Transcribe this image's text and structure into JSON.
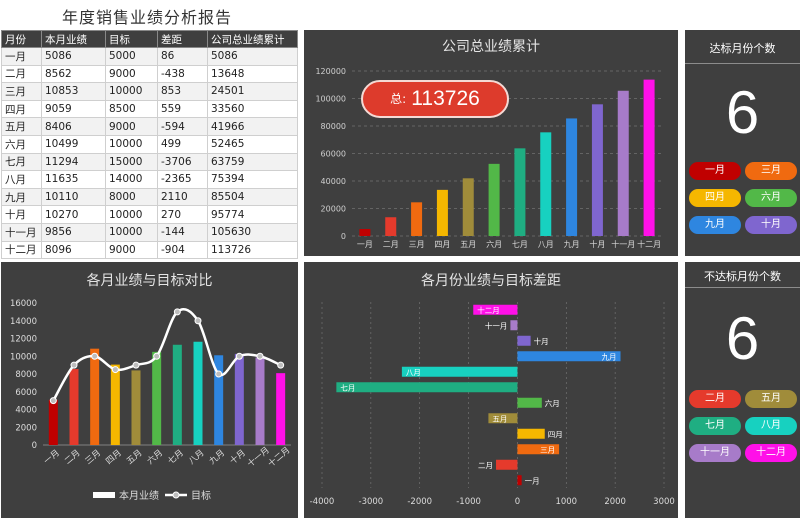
{
  "report_title": "年度销售业绩分析报告",
  "table": {
    "headers": [
      "月份",
      "本月业绩",
      "目标",
      "差距",
      "公司总业绩累计"
    ],
    "rows": [
      [
        "一月",
        "5086",
        "5000",
        "86",
        "5086"
      ],
      [
        "二月",
        "8562",
        "9000",
        "-438",
        "13648"
      ],
      [
        "三月",
        "10853",
        "10000",
        "853",
        "24501"
      ],
      [
        "四月",
        "9059",
        "8500",
        "559",
        "33560"
      ],
      [
        "五月",
        "8406",
        "9000",
        "-594",
        "41966"
      ],
      [
        "六月",
        "10499",
        "10000",
        "499",
        "52465"
      ],
      [
        "七月",
        "11294",
        "15000",
        "-3706",
        "63759"
      ],
      [
        "八月",
        "11635",
        "14000",
        "-2365",
        "75394"
      ],
      [
        "九月",
        "10110",
        "8000",
        "2110",
        "85504"
      ],
      [
        "十月",
        "10270",
        "10000",
        "270",
        "95774"
      ],
      [
        "十一月",
        "9856",
        "10000",
        "-144",
        "105630"
      ],
      [
        "十二月",
        "8096",
        "9000",
        "-904",
        "113726"
      ]
    ]
  },
  "colors": [
    "#c00000",
    "#e53a2c",
    "#f06a10",
    "#f5b700",
    "#a08c3a",
    "#52b848",
    "#1fae82",
    "#17d1c0",
    "#2e86e0",
    "#7f66cf",
    "#a77bc9",
    "#ff10e8"
  ],
  "total_badge": {
    "prefix": "总:",
    "value": "113726"
  },
  "chart_data": [
    {
      "type": "bar",
      "title": "公司总业绩累计",
      "categories": [
        "一月",
        "二月",
        "三月",
        "四月",
        "五月",
        "六月",
        "七月",
        "八月",
        "九月",
        "十月",
        "十一月",
        "十二月"
      ],
      "values": [
        5086,
        13648,
        24501,
        33560,
        41966,
        52465,
        63759,
        75394,
        85504,
        95774,
        105630,
        113726
      ],
      "ylim": [
        0,
        120000
      ],
      "yticks": [
        "0",
        "20000",
        "40000",
        "60000",
        "80000",
        "100000",
        "120000"
      ],
      "grid": true
    },
    {
      "type": "bar",
      "title": "各月业绩与目标对比",
      "categories": [
        "一月",
        "二月",
        "三月",
        "四月",
        "五月",
        "六月",
        "七月",
        "八月",
        "九月",
        "十月",
        "十一月",
        "十二月"
      ],
      "series": [
        {
          "name": "本月业绩",
          "type": "bar",
          "values": [
            5086,
            8562,
            10853,
            9059,
            8406,
            10499,
            11294,
            11635,
            10110,
            10270,
            9856,
            8096
          ]
        },
        {
          "name": "目标",
          "type": "line",
          "values": [
            5000,
            9000,
            10000,
            8500,
            9000,
            10000,
            15000,
            14000,
            8000,
            10000,
            10000,
            9000
          ]
        }
      ],
      "ylim": [
        0,
        16000
      ],
      "yticks": [
        "0",
        "2000",
        "4000",
        "6000",
        "8000",
        "10000",
        "12000",
        "14000",
        "16000"
      ],
      "legend": "bottom"
    },
    {
      "type": "bar",
      "orientation": "horizontal",
      "title": "各月份业绩与目标差距",
      "categories": [
        "一月",
        "二月",
        "三月",
        "四月",
        "五月",
        "六月",
        "七月",
        "八月",
        "九月",
        "十月",
        "十一月",
        "十二月"
      ],
      "values": [
        86,
        -438,
        853,
        559,
        -594,
        499,
        -3706,
        -2365,
        2110,
        270,
        -144,
        -904
      ],
      "xlim": [
        -4000,
        3000
      ],
      "xticks": [
        "-4000",
        "-3000",
        "-2000",
        "-1000",
        "0",
        "1000",
        "2000",
        "3000"
      ]
    }
  ],
  "met_panel": {
    "title": "达标月份个数",
    "count": "6",
    "months": [
      {
        "label": "一月",
        "color": "#c00000"
      },
      {
        "label": "三月",
        "color": "#f06a10"
      },
      {
        "label": "四月",
        "color": "#f5b700"
      },
      {
        "label": "六月",
        "color": "#52b848"
      },
      {
        "label": "九月",
        "color": "#2e86e0"
      },
      {
        "label": "十月",
        "color": "#7f66cf"
      }
    ]
  },
  "missed_panel": {
    "title": "不达标月份个数",
    "count": "6",
    "months": [
      {
        "label": "二月",
        "color": "#e53a2c"
      },
      {
        "label": "五月",
        "color": "#a08c3a"
      },
      {
        "label": "七月",
        "color": "#1fae82"
      },
      {
        "label": "八月",
        "color": "#17d1c0"
      },
      {
        "label": "十一月",
        "color": "#a77bc9"
      },
      {
        "label": "十二月",
        "color": "#ff10e8"
      }
    ]
  }
}
